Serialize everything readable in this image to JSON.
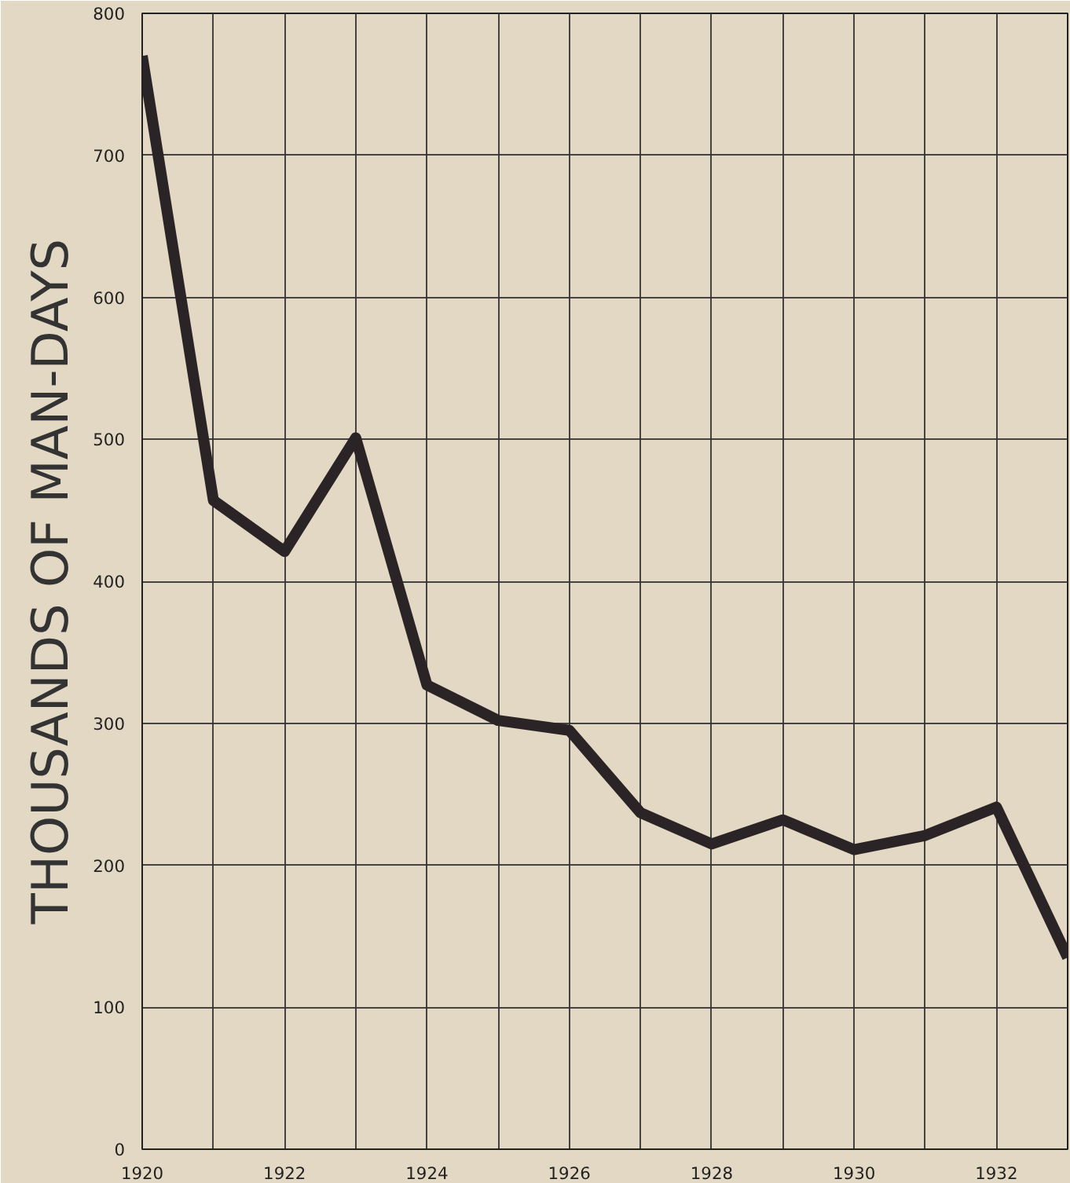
{
  "chart_data": {
    "type": "line",
    "ylabel": "THOUSANDS OF MAN-DAYS",
    "x": [
      1920,
      1921,
      1922,
      1923,
      1924,
      1925,
      1926,
      1927,
      1928,
      1929,
      1930,
      1931,
      1932,
      1933
    ],
    "series": [
      {
        "color": "#2a2426",
        "values": [
          770,
          457,
          421,
          501,
          327,
          302,
          295,
          237,
          215,
          232,
          211,
          221,
          241,
          135
        ]
      }
    ],
    "xlim": [
      1920,
      1933
    ],
    "ylim": [
      0,
      800
    ],
    "xticks": [
      1920,
      {
        "value": 1921,
        "label": null
      },
      1922,
      {
        "value": 1923,
        "label": null
      },
      1924,
      {
        "value": 1925,
        "label": null
      },
      1926,
      {
        "value": 1927,
        "label": null
      },
      1928,
      {
        "value": 1929,
        "label": null
      },
      1930,
      {
        "value": 1931,
        "label": null
      },
      1932,
      {
        "value": 1933,
        "label": null
      }
    ],
    "yticks": [
      0,
      100,
      200,
      300,
      400,
      500,
      600,
      700,
      800
    ],
    "grid": true,
    "marker": "none",
    "line_style": "solid"
  }
}
